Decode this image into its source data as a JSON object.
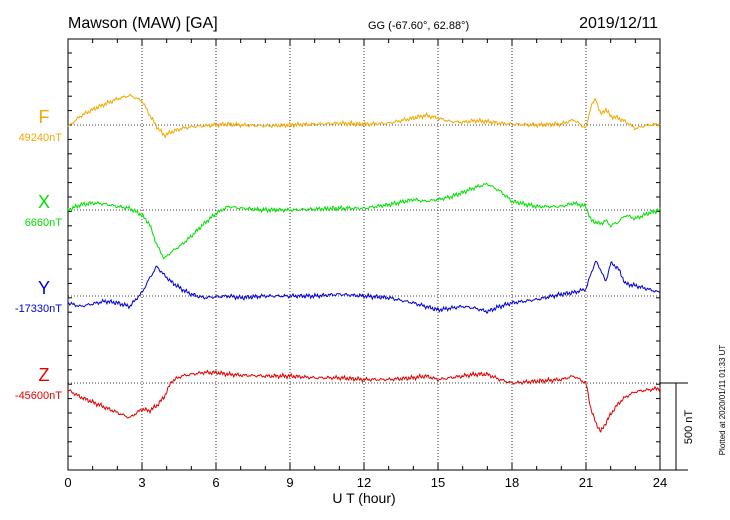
{
  "header": {
    "station": "Mawson (MAW)  [GA]",
    "coords": "GG (-67.60°,  62.88°)",
    "date": "2019/12/11"
  },
  "footer": {
    "plotted": "Plotted at 2020/01/11 01:33 UT"
  },
  "chart_data": {
    "type": "line",
    "title": "Mawson (MAW)  [GA]",
    "xlabel": "U T (hour)",
    "xlim": [
      0,
      24
    ],
    "xticks": [
      0,
      3,
      6,
      9,
      12,
      15,
      18,
      21,
      24
    ],
    "scale_bar": {
      "label": "500 nT",
      "value_nT": 500
    },
    "grid": {
      "vertical": "dotted",
      "baselines": "dotted"
    },
    "series": [
      {
        "name": "F",
        "baseline_label": "49240nT",
        "baseline_nT": 49240,
        "color": "#F2A900",
        "x": [
          0,
          0.5,
          1,
          1.5,
          2,
          2.5,
          3,
          3.3,
          3.6,
          3.9,
          4.2,
          4.6,
          5,
          5.5,
          6,
          6.5,
          7,
          8,
          9,
          10,
          11,
          12,
          13,
          14,
          14.5,
          15,
          15.5,
          16,
          16.5,
          17,
          17.5,
          18,
          19,
          20,
          20.5,
          21,
          21.2,
          21.4,
          21.6,
          21.8,
          22,
          22.3,
          22.6,
          23,
          23.5,
          24
        ],
        "y": [
          -10,
          50,
          90,
          120,
          150,
          170,
          140,
          60,
          -10,
          -60,
          -40,
          -20,
          -10,
          -5,
          0,
          5,
          0,
          -5,
          0,
          5,
          10,
          5,
          10,
          40,
          55,
          40,
          20,
          15,
          25,
          20,
          10,
          5,
          0,
          5,
          30,
          -20,
          110,
          150,
          60,
          90,
          50,
          40,
          20,
          -20,
          0,
          5
        ]
      },
      {
        "name": "X",
        "baseline_label": "6660nT",
        "baseline_nT": 6660,
        "color": "#00E000",
        "x": [
          0,
          0.5,
          1,
          1.5,
          2,
          2.5,
          3,
          3.3,
          3.6,
          3.9,
          4.2,
          4.6,
          5,
          5.5,
          6,
          6.5,
          7,
          8,
          9,
          10,
          11,
          12,
          13,
          14,
          14.5,
          15,
          15.5,
          16,
          16.5,
          17,
          17.5,
          18,
          19,
          20,
          20.5,
          21,
          21.2,
          21.4,
          21.6,
          21.8,
          22,
          22.3,
          22.6,
          23,
          23.5,
          24
        ],
        "y": [
          0,
          30,
          40,
          35,
          20,
          10,
          -30,
          -80,
          -200,
          -280,
          -240,
          -200,
          -150,
          -80,
          -20,
          20,
          10,
          0,
          0,
          5,
          10,
          10,
          30,
          60,
          50,
          60,
          75,
          100,
          130,
          150,
          110,
          50,
          20,
          20,
          40,
          20,
          -60,
          -70,
          -80,
          -60,
          -90,
          -70,
          -30,
          -50,
          -20,
          0
        ]
      },
      {
        "name": "Y",
        "baseline_label": "-17330nT",
        "baseline_nT": -17330,
        "color": "#0000D8",
        "x": [
          0,
          0.5,
          1,
          1.5,
          2,
          2.5,
          3,
          3.3,
          3.6,
          3.9,
          4.2,
          4.6,
          5,
          5.5,
          6,
          6.5,
          7,
          8,
          9,
          10,
          11,
          12,
          13,
          14,
          14.5,
          15,
          15.5,
          16,
          16.5,
          17,
          17.5,
          18,
          19,
          20,
          20.5,
          21,
          21.2,
          21.4,
          21.6,
          21.8,
          22,
          22.3,
          22.6,
          23,
          23.5,
          24
        ],
        "y": [
          -40,
          -60,
          -45,
          -30,
          -40,
          -60,
          20,
          100,
          170,
          120,
          80,
          40,
          10,
          -10,
          -5,
          0,
          -10,
          0,
          0,
          0,
          10,
          0,
          -10,
          -40,
          -60,
          -80,
          -70,
          -60,
          -70,
          -90,
          -60,
          -40,
          -20,
          10,
          20,
          40,
          130,
          200,
          150,
          80,
          190,
          160,
          70,
          60,
          40,
          20
        ]
      },
      {
        "name": "Z",
        "baseline_label": "-45600nT",
        "baseline_nT": -45600,
        "color": "#E00000",
        "x": [
          0,
          0.5,
          1,
          1.5,
          2,
          2.5,
          3,
          3.3,
          3.6,
          3.9,
          4.2,
          4.6,
          5,
          5.5,
          6,
          6.5,
          7,
          8,
          9,
          10,
          11,
          12,
          13,
          14,
          14.5,
          15,
          15.5,
          16,
          16.5,
          17,
          17.5,
          18,
          19,
          20,
          20.5,
          21,
          21.2,
          21.4,
          21.6,
          21.8,
          22,
          22.3,
          22.6,
          23,
          23.5,
          24
        ],
        "y": [
          -40,
          -80,
          -110,
          -140,
          -170,
          -200,
          -150,
          -160,
          -130,
          -80,
          10,
          40,
          50,
          60,
          60,
          50,
          45,
          40,
          40,
          30,
          30,
          20,
          20,
          30,
          40,
          20,
          30,
          40,
          50,
          50,
          20,
          0,
          10,
          20,
          40,
          0,
          -150,
          -230,
          -280,
          -230,
          -180,
          -120,
          -80,
          -50,
          -40,
          -30
        ]
      }
    ]
  }
}
